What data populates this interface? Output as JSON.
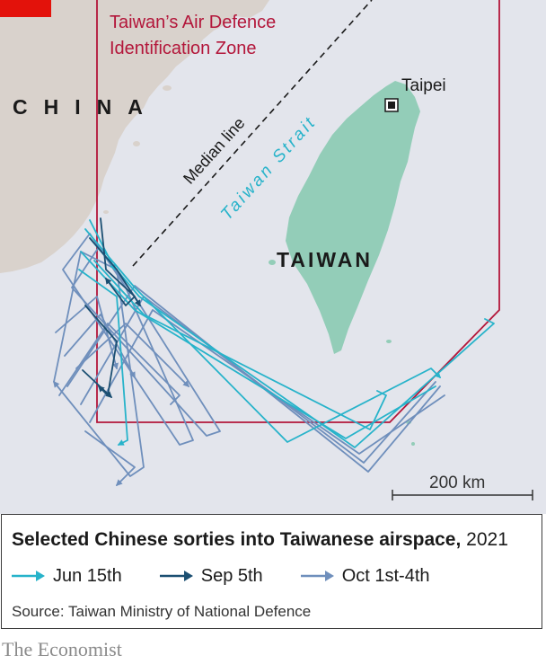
{
  "map": {
    "adiz_label_line1": "Taiwan’s Air Defence",
    "adiz_label_line2": "Identification Zone",
    "china_label": "CHINA",
    "taiwan_label": "TAIWAN",
    "strait_label": "Taiwan Strait",
    "median_label": "Median line",
    "taipei_label": "Taipei",
    "scale_label": "200 km"
  },
  "legend": {
    "title_bold": "Selected Chinese sorties into Taiwanese airspace,",
    "title_year": " 2021",
    "items": [
      {
        "label": "Jun 15th",
        "color": "#27b3ca"
      },
      {
        "label": "Sep 5th",
        "color": "#1b4f72"
      },
      {
        "label": "Oct 1st-4th",
        "color": "#6f8fbc"
      }
    ],
    "source": "Source: Taiwan Ministry of National Defence"
  },
  "brand": "The Economist",
  "colors": {
    "sea": "#e3e5ec",
    "china_land": "#d9d2cc",
    "taiwan_land": "#93cdb8",
    "adiz_border": "#b3163a",
    "corner_flag": "#e3120b"
  }
}
